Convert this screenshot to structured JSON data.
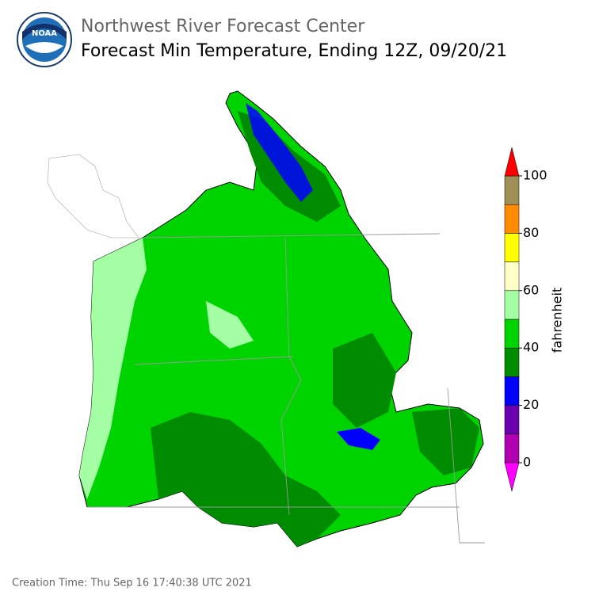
{
  "header": {
    "logo": "NOAA",
    "agency": "Northwest River Forecast Center",
    "title": "Forecast Min Temperature, Ending 12Z, 09/20/21"
  },
  "colorbar": {
    "label": "fahrenheit",
    "ticks": [
      0,
      20,
      40,
      60,
      80,
      100
    ],
    "colors": [
      "#b000b0",
      "#6a00b0",
      "#0000ff",
      "#008c00",
      "#00d400",
      "#a4ffa4",
      "#ffffc8",
      "#ffff00",
      "#ff8c00",
      "#a09058"
    ],
    "under": "#ff00ff",
    "over": "#ff0000"
  },
  "footer": "Creation Time: Thu Sep 16 17:40:38 UTC 2021"
}
